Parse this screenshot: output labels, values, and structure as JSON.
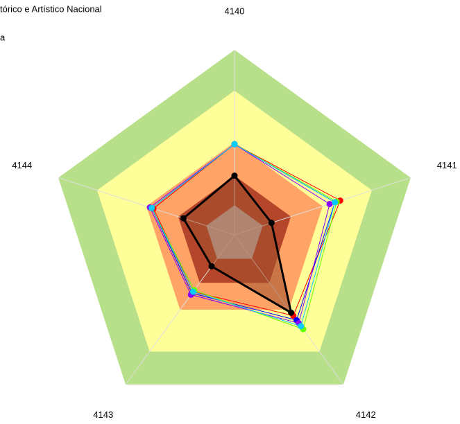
{
  "chart_data": {
    "type": "radar",
    "title": "tórico e Artístico Nacional",
    "subtitle": "a",
    "categories": [
      "4140",
      "4141",
      "4142",
      "4143",
      "4144"
    ],
    "ylim": [
      0,
      100
    ],
    "bands": [
      {
        "to": 100,
        "color": "#b8df8a"
      },
      {
        "to": 78,
        "color": "#ffff99"
      },
      {
        "to": 50,
        "color": "#ffa366"
      },
      {
        "to": 32,
        "color": "#b5452a"
      },
      {
        "to": 16,
        "color": "#c0c0c0"
      }
    ],
    "series": [
      {
        "color": "#ff0000",
        "values": [
          49,
          60,
          54,
          38,
          46
        ]
      },
      {
        "color": "#0000ff",
        "values": [
          49,
          57,
          57,
          39,
          47
        ]
      },
      {
        "color": "#66ff00",
        "values": [
          49,
          58,
          63,
          37,
          47
        ]
      },
      {
        "color": "#8800ff",
        "values": [
          49,
          54,
          59,
          40,
          48
        ]
      },
      {
        "color": "#00ccff",
        "values": [
          49,
          57,
          61,
          38,
          47
        ]
      },
      {
        "color": "#000000",
        "fill": "#a0522d",
        "values": [
          32,
          21,
          52,
          21,
          29
        ]
      }
    ]
  }
}
